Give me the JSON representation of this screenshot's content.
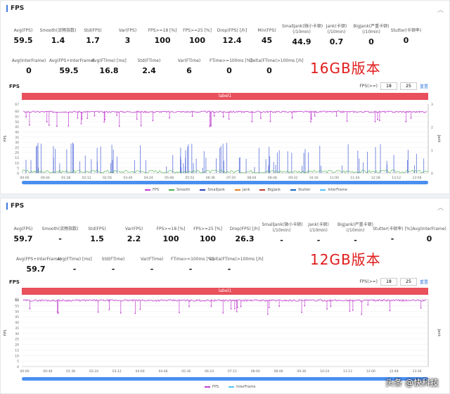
{
  "panel1": {
    "title": "FPS",
    "collapse_icon": "chevron-up-icon",
    "row1": [
      {
        "label": "Avg(FPS)",
        "value": "59.5"
      },
      {
        "label": "Smooth(流畅指数)",
        "value": "1.4"
      },
      {
        "label": "Std(FPS)",
        "value": "1.7"
      },
      {
        "label": "Var(FPS)",
        "value": "3"
      },
      {
        "label": "FPS>=18 [%]",
        "value": "100"
      },
      {
        "label": "FPS>=25 [%]",
        "value": "100"
      },
      {
        "label": "Drop(FPS) [/h]",
        "value": "12.4"
      },
      {
        "label": "Min(FPS)",
        "value": "45"
      },
      {
        "label": "SmallJank(微小卡顿)\n(/10min)",
        "value": "44.9"
      },
      {
        "label": "Jank(卡顿)\n(/10min)",
        "value": "0.7"
      },
      {
        "label": "BigJank(严重卡顿)\n(/10min)",
        "value": "0"
      },
      {
        "label": "Stutter(卡顿率)",
        "value": "0"
      }
    ],
    "row2": [
      {
        "label": "Avg(InterFrame)",
        "value": "0"
      },
      {
        "label": "Avg(FPS+InterFrame)",
        "value": "59.5"
      },
      {
        "label": "Avg(FTime) [ms]",
        "value": "16.8"
      },
      {
        "label": "Std(FTime)",
        "value": "2.4"
      },
      {
        "label": "Var(FTime)",
        "value": "6"
      },
      {
        "label": "FTime>=100ms [%]",
        "value": "0"
      },
      {
        "label": "Delta(FTime)>100ms [/h]",
        "value": "0"
      }
    ],
    "annotation": "16GB版本",
    "chart_title": "FPS",
    "fps_label": "FPS(>=)",
    "fps_min": "18",
    "fps_max": "25",
    "reset": "重置",
    "label_bar": "label1",
    "y_ticks": [
      "67",
      "60",
      "55",
      "50",
      "45",
      "40",
      "35",
      "30",
      "25",
      "20",
      "15",
      "10",
      "5",
      "0"
    ],
    "y_axis_label": "FPS",
    "y2_ticks": [
      "3",
      "2",
      "1",
      "0"
    ],
    "y2_axis_label": "Jank",
    "x_ticks": [
      "00:00",
      "00:44",
      "01:28",
      "02:12",
      "02:56",
      "03:40",
      "04:24",
      "05:08",
      "05:52",
      "06:36",
      "07:20",
      "08:04",
      "08:48",
      "09:32",
      "10:16",
      "11:00",
      "11:44",
      "12:28",
      "13:12",
      "13:56"
    ],
    "legend": [
      {
        "name": "FPS",
        "color": "#c13fd0"
      },
      {
        "name": "Smooth",
        "color": "#4caf50"
      },
      {
        "name": "SmallJank",
        "color": "#2b3dbd"
      },
      {
        "name": "Jank",
        "color": "#e67e22"
      },
      {
        "name": "BigJank",
        "color": "#c0392b"
      },
      {
        "name": "Stutter",
        "color": "#1565c0"
      },
      {
        "name": "InterFrame",
        "color": "#4fc3f7"
      }
    ]
  },
  "panel2": {
    "title": "FPS",
    "collapse_icon": "chevron-up-icon",
    "row1": [
      {
        "label": "Avg(FPS)",
        "value": "59.7"
      },
      {
        "label": "Smooth(流畅指数)",
        "value": "-"
      },
      {
        "label": "Std(FPS)",
        "value": "1.5"
      },
      {
        "label": "Var(FPS)",
        "value": "2.2"
      },
      {
        "label": "FPS>=18 [%]",
        "value": "100"
      },
      {
        "label": "FPS>=25 [%]",
        "value": "100"
      },
      {
        "label": "Drop(FPS) [/h]",
        "value": "26.3"
      },
      {
        "label": "SmallJank(微小卡顿)\n(/10min)",
        "value": "-"
      },
      {
        "label": "Jank(卡顿)\n(/10min)",
        "value": "-"
      },
      {
        "label": "BigJank(严重卡顿)\n(/10min)",
        "value": "-"
      },
      {
        "label": "Stutter(卡顿率) [%]",
        "value": "-"
      },
      {
        "label": "Avg(InterFrame)",
        "value": "0"
      }
    ],
    "row2": [
      {
        "label": "Avg(FPS+InterFrame)",
        "value": "59.7"
      },
      {
        "label": "Avg(FTime) [ms]",
        "value": "-"
      },
      {
        "label": "Std(FTime)",
        "value": "-"
      },
      {
        "label": "Var(FTime)",
        "value": "-"
      },
      {
        "label": "FTime>=100ms [%]",
        "value": "-"
      },
      {
        "label": "Delta(FTime)>100ms [/h]",
        "value": "-"
      }
    ],
    "annotation": "12GB版本",
    "chart_title": "FPS",
    "fps_label": "FPS(>=)",
    "fps_min": "18",
    "fps_max": "25",
    "reset": "重置",
    "label_bar": "label1",
    "y_ticks": [
      "61",
      "60",
      "55",
      "50",
      "45",
      "40",
      "35",
      "30",
      "25",
      "20",
      "15",
      "10",
      "5",
      "0"
    ],
    "y_axis_label": "FPS",
    "y2_axis_label": "Jank",
    "x_ticks": [
      "00:00",
      "00:48",
      "01:36",
      "02:24",
      "03:12",
      "04:00",
      "04:48",
      "05:36",
      "06:24",
      "07:12",
      "08:00",
      "08:48",
      "09:36",
      "10:24",
      "11:12",
      "12:00",
      "12:48",
      "13:36"
    ],
    "legend": [
      {
        "name": "FPS",
        "color": "#c13fd0"
      },
      {
        "name": "InterFrame",
        "color": "#4fc3f7"
      }
    ]
  },
  "watermark": "头条 @快科技",
  "chart_data": [
    {
      "type": "line",
      "title": "FPS",
      "xlabel": "",
      "ylabel": "FPS",
      "ylim": [
        0,
        67
      ],
      "series": [
        {
          "name": "FPS",
          "approx_mean": 59.5,
          "min": 45
        }
      ]
    },
    {
      "type": "line",
      "title": "FPS",
      "xlabel": "",
      "ylabel": "FPS",
      "ylim": [
        0,
        61
      ],
      "series": [
        {
          "name": "FPS",
          "approx_mean": 59.7
        }
      ]
    }
  ]
}
